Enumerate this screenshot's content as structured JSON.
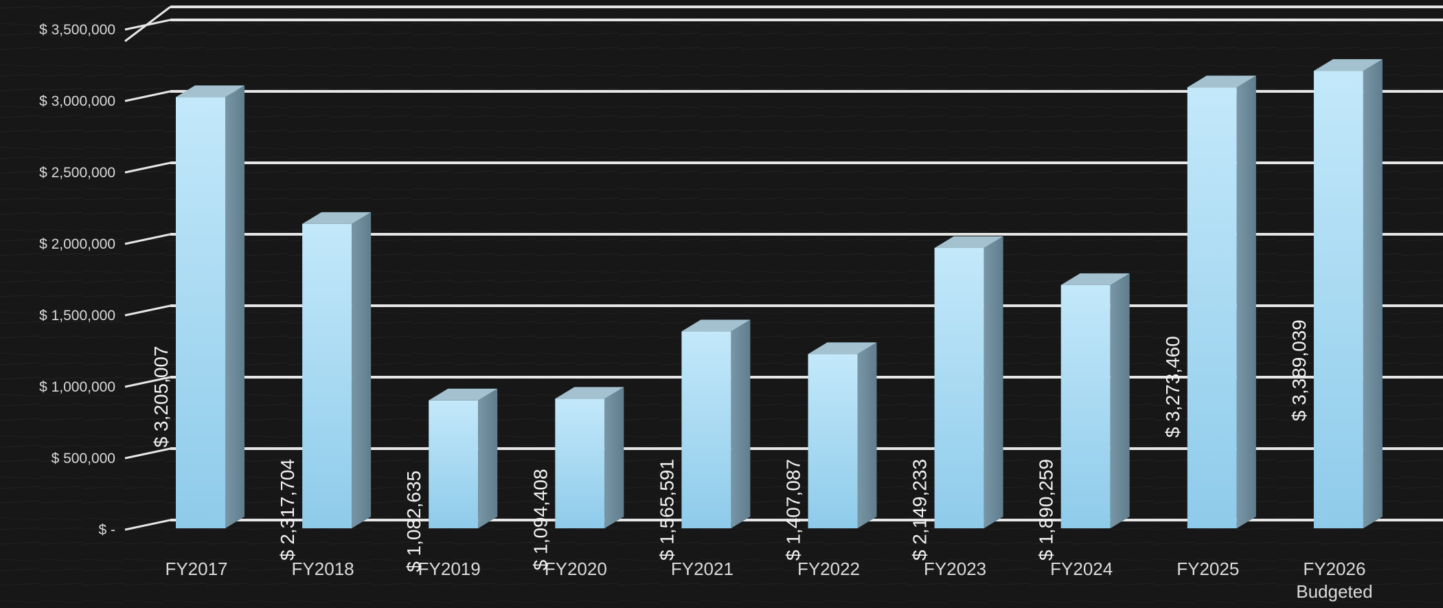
{
  "chart_data": {
    "type": "bar",
    "categories": [
      [
        "FY2017"
      ],
      [
        "FY2018"
      ],
      [
        "FY2019"
      ],
      [
        "FY2020"
      ],
      [
        "FY2021"
      ],
      [
        "FY2022"
      ],
      [
        "FY2023"
      ],
      [
        "FY2024"
      ],
      [
        "FY2025"
      ],
      [
        "FY2026",
        "Budgeted"
      ]
    ],
    "values": [
      3205007,
      2317704,
      1082635,
      1094408,
      1565591,
      1407087,
      2149233,
      1890259,
      3273460,
      3389039
    ],
    "value_labels": [
      "$ 3,205,007",
      "$ 2,317,704",
      "$ 1,082,635",
      "$ 1,094,408",
      "$ 1,565,591",
      "$ 1,407,087",
      "$ 2,149,233",
      "$ 1,890,259",
      "$ 3,273,460",
      "$ 3,389,039"
    ],
    "y_ticks": [
      0,
      500000,
      1000000,
      1500000,
      2000000,
      2500000,
      3000000,
      3500000
    ],
    "y_tick_labels": [
      "$ -",
      "$ 500,000",
      "$ 1,000,000",
      "$ 1,500,000",
      "$ 2,000,000",
      "$ 2,500,000",
      "$ 3,000,000",
      "$ 3,500,000"
    ],
    "ylim": [
      0,
      3500000
    ],
    "grid": true,
    "three_d": true,
    "colors": {
      "background": "#141414",
      "grid": "#e6e6e6",
      "bar_front_top": "#c3e8fa",
      "bar_front_bottom": "#8ecbea",
      "bar_side": "#6f8fa0",
      "bar_top": "#a3c1cf"
    }
  }
}
